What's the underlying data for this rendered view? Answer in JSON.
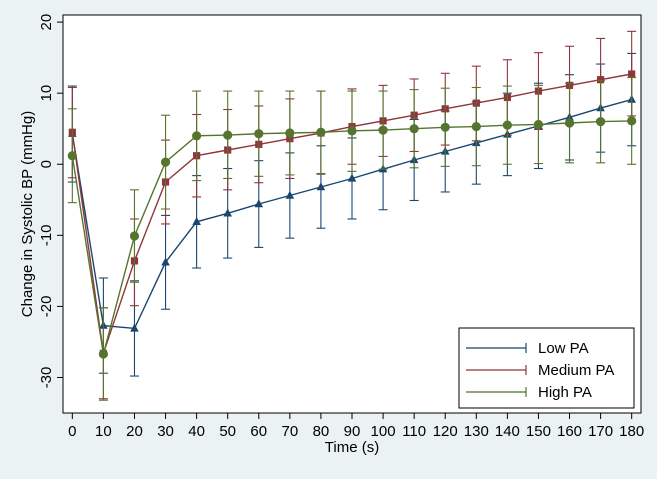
{
  "chart_data": {
    "type": "line",
    "xlabel": "Time (s)",
    "ylabel": "Change in Systolic BP (mmHg)",
    "x": [
      0,
      10,
      20,
      30,
      40,
      50,
      60,
      70,
      80,
      90,
      100,
      110,
      120,
      130,
      140,
      150,
      160,
      170,
      180
    ],
    "x_ticks": [
      0,
      10,
      20,
      30,
      40,
      50,
      60,
      70,
      80,
      90,
      100,
      110,
      120,
      130,
      140,
      150,
      160,
      170,
      180
    ],
    "xlim": [
      -3,
      183
    ],
    "ylim": [
      -35,
      21
    ],
    "y_ticks": [
      -30,
      -20,
      -10,
      0,
      10,
      20
    ],
    "grid": false,
    "legend_position": "bottom-right",
    "series": [
      {
        "name": "Low PA",
        "color": "#1a476f",
        "marker": "triangle",
        "values": [
          4.3,
          -22.7,
          -23.1,
          -13.8,
          -8.1,
          -6.9,
          -5.6,
          -4.4,
          -3.2,
          -2.0,
          -0.7,
          0.6,
          1.8,
          3.0,
          4.2,
          5.4,
          6.6,
          7.9,
          9.1
        ],
        "lower": [
          -2.5,
          -29.4,
          -29.8,
          -20.4,
          -14.6,
          -13.2,
          -11.7,
          -10.4,
          -9.0,
          -7.7,
          -6.4,
          -5.1,
          -3.9,
          -2.8,
          -1.6,
          -0.6,
          0.6,
          1.7,
          2.6
        ],
        "upper": [
          11.0,
          -16.0,
          -16.4,
          -7.2,
          -1.6,
          -0.6,
          0.5,
          1.6,
          2.6,
          3.7,
          5.0,
          6.3,
          7.5,
          8.8,
          10.0,
          11.4,
          12.6,
          14.1,
          15.6
        ]
      },
      {
        "name": "Medium PA",
        "color": "#90353b",
        "marker": "square",
        "values": [
          4.5,
          -26.6,
          -13.6,
          -2.5,
          1.2,
          2.0,
          2.8,
          3.6,
          4.4,
          5.3,
          6.1,
          6.9,
          7.8,
          8.6,
          9.4,
          10.3,
          11.1,
          11.9,
          12.7
        ],
        "lower": [
          -1.9,
          -33.0,
          -19.9,
          -8.4,
          -4.6,
          -3.6,
          -2.6,
          -2.0,
          -1.4,
          0.0,
          1.1,
          1.8,
          2.7,
          3.3,
          4.1,
          4.9,
          5.6,
          6.2,
          6.8
        ],
        "upper": [
          10.8,
          -20.2,
          -7.7,
          3.4,
          7.0,
          7.7,
          8.2,
          9.2,
          10.3,
          10.6,
          11.1,
          12.0,
          12.8,
          13.8,
          14.7,
          15.7,
          16.6,
          17.7,
          18.7
        ]
      },
      {
        "name": "High PA",
        "color": "#55752f",
        "marker": "circle",
        "values": [
          1.2,
          -26.7,
          -10.1,
          0.3,
          4.0,
          4.1,
          4.3,
          4.4,
          4.5,
          4.7,
          4.8,
          5.0,
          5.2,
          5.3,
          5.5,
          5.6,
          5.8,
          6.0,
          6.1
        ],
        "lower": [
          -5.4,
          -33.2,
          -16.6,
          -6.3,
          -2.3,
          -2.0,
          -1.7,
          -1.5,
          -1.3,
          -1.0,
          -0.7,
          -0.5,
          -0.3,
          -0.2,
          0.0,
          0.1,
          0.2,
          0.2,
          0.0
        ],
        "upper": [
          7.8,
          -20.2,
          -3.6,
          6.9,
          10.3,
          10.3,
          10.3,
          10.3,
          10.3,
          10.3,
          10.3,
          10.5,
          10.7,
          10.8,
          11.0,
          11.1,
          11.4,
          11.8,
          12.2
        ]
      }
    ]
  }
}
